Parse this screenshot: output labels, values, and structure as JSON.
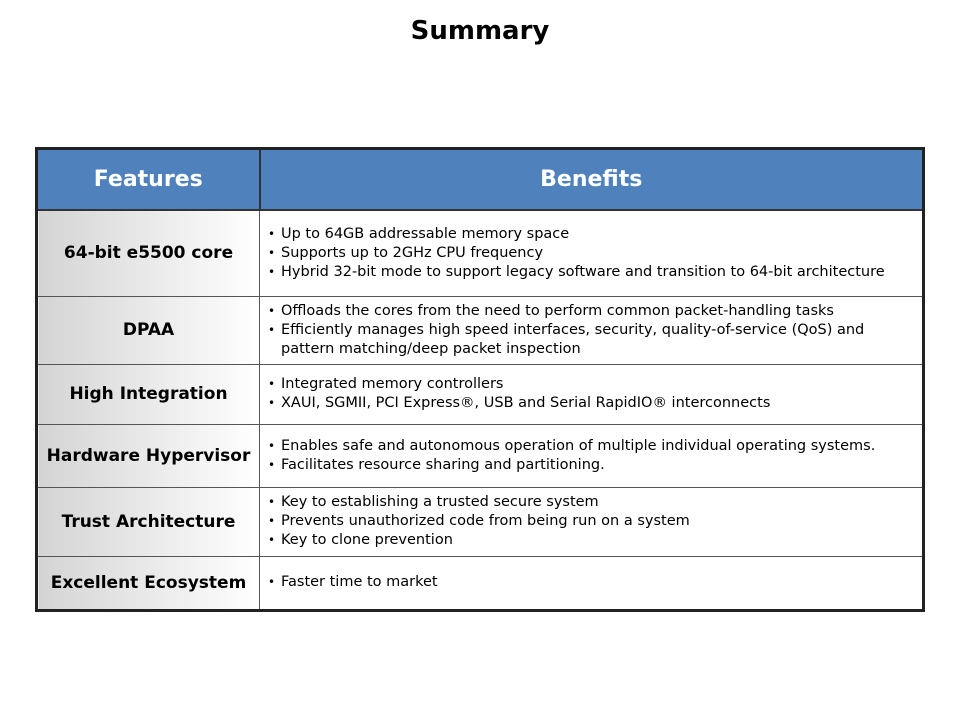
{
  "title": "Summary",
  "table": {
    "headers": [
      "Features",
      "Benefits"
    ],
    "rows": [
      {
        "feature": "64-bit e5500 core",
        "benefits": [
          "Up to 64GB addressable memory space",
          "Supports up to 2GHz CPU frequency",
          "Hybrid 32-bit mode to support legacy software and transition to 64-bit architecture"
        ]
      },
      {
        "feature": "DPAA",
        "benefits": [
          "Offloads the cores from the need to perform common packet-handling tasks",
          "Efficiently manages high speed interfaces, security, quality-of-service (QoS) and pattern matching/deep packet inspection"
        ]
      },
      {
        "feature": "High Integration",
        "benefits": [
          "Integrated memory controllers",
          "XAUI, SGMII, PCI Express®, USB and Serial RapidIO® interconnects"
        ]
      },
      {
        "feature": "Hardware Hypervisor",
        "benefits": [
          "Enables safe and autonomous operation of multiple individual operating systems.",
          "Facilitates resource sharing and partitioning."
        ]
      },
      {
        "feature": "Trust Architecture",
        "benefits": [
          "Key to establishing a trusted secure system",
          "Prevents unauthorized code from being run on a system",
          "Key to clone prevention"
        ]
      },
      {
        "feature": "Excellent Ecosystem",
        "benefits": [
          "Faster time to market"
        ]
      }
    ]
  },
  "colors": {
    "header": "#4f81bd"
  }
}
